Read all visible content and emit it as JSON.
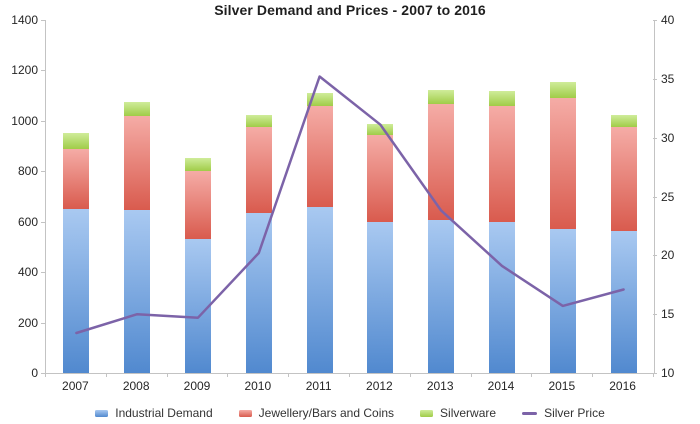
{
  "title": "Silver Demand and Prices - 2007 to 2016",
  "colors": {
    "industrial_top": "#a9c9f1",
    "industrial_bottom": "#5189cf",
    "jewellery_top": "#f5aca6",
    "jewellery_bottom": "#d95b4e",
    "silverware_top": "#cfec9a",
    "silverware_bottom": "#a0cc48",
    "price_line": "#7c63a8",
    "axis_line": "#c3c3c3",
    "text": "#262626",
    "legend_swatch_industrial": "#5b9bd5",
    "legend_swatch_jewellery": "#e05c50",
    "legend_swatch_silverware": "#9fcb45"
  },
  "chart_data": {
    "type": "bar",
    "subtype": "stacked-bar-with-line-combo",
    "title": "Silver Demand and Prices - 2007 to 2016",
    "categories": [
      "2007",
      "2008",
      "2009",
      "2010",
      "2011",
      "2012",
      "2013",
      "2014",
      "2015",
      "2016"
    ],
    "series": [
      {
        "name": "Industrial Demand",
        "type": "bar",
        "axis": "left",
        "values": [
          650,
          645,
          530,
          635,
          660,
          600,
          605,
          600,
          570,
          562
        ]
      },
      {
        "name": "Jewellery/Bars and Coins",
        "type": "bar",
        "axis": "left",
        "values": [
          240,
          375,
          270,
          340,
          400,
          345,
          460,
          458,
          520,
          413
        ]
      },
      {
        "name": "Silverware",
        "type": "bar",
        "axis": "left",
        "values": [
          60,
          55,
          52,
          50,
          50,
          43,
          58,
          62,
          65,
          50
        ]
      },
      {
        "name": "Silver Price",
        "type": "line",
        "axis": "right",
        "values": [
          13.4,
          15.0,
          14.7,
          20.2,
          35.2,
          31.1,
          23.8,
          19.1,
          15.7,
          17.1
        ]
      }
    ],
    "stacked_totals": [
      950,
      1075,
      852,
      1025,
      1110,
      988,
      1123,
      1120,
      1155,
      1025
    ],
    "left_axis": {
      "min": 0,
      "max": 1400,
      "step": 200,
      "ticks": [
        "0",
        "200",
        "400",
        "600",
        "800",
        "1000",
        "1200",
        "1400"
      ]
    },
    "right_axis": {
      "min": 10,
      "max": 40,
      "step": 5,
      "ticks": [
        "10",
        "15",
        "20",
        "25",
        "30",
        "35",
        "40"
      ]
    },
    "grid": false,
    "legend_position": "bottom",
    "legend": [
      "Industrial Demand",
      "Jewellery/Bars and Coins",
      "Silverware",
      "Silver Price"
    ]
  }
}
